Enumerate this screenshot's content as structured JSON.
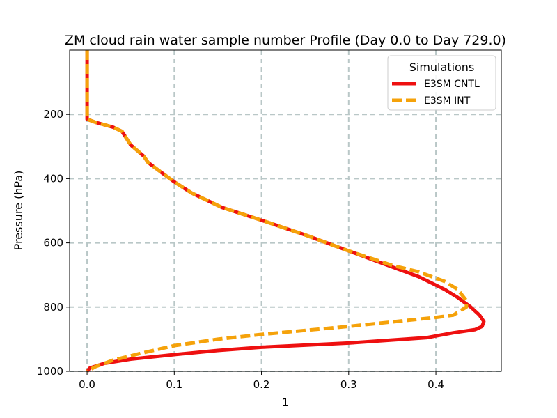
{
  "chart_data": {
    "type": "line",
    "title": "ZM cloud rain water sample number Profile (Day 0.0 to Day 729.0)",
    "xlabel": "1",
    "ylabel": "Pressure (hPa)",
    "xlim": [
      -0.02,
      0.475
    ],
    "ylim": [
      1000,
      0
    ],
    "y_inverted": true,
    "xticks": [
      0.0,
      0.1,
      0.2,
      0.3,
      0.4
    ],
    "xtick_labels": [
      "0.0",
      "0.1",
      "0.2",
      "0.3",
      "0.4"
    ],
    "yticks": [
      200,
      400,
      600,
      800,
      1000
    ],
    "ytick_labels": [
      "200",
      "400",
      "600",
      "800",
      "1000"
    ],
    "grid": true,
    "legend": {
      "title": "Simulations",
      "placement": "top-right"
    },
    "series": [
      {
        "name": "E3SM CNTL",
        "color": "#ee1010",
        "style": "solid",
        "points": [
          [
            0.0,
            0
          ],
          [
            0.0,
            50
          ],
          [
            0.0,
            100
          ],
          [
            0.0,
            150
          ],
          [
            0.0,
            200
          ],
          [
            0.0,
            215
          ],
          [
            0.01,
            225
          ],
          [
            0.03,
            240
          ],
          [
            0.04,
            253
          ],
          [
            0.05,
            295
          ],
          [
            0.065,
            330
          ],
          [
            0.07,
            350
          ],
          [
            0.085,
            380
          ],
          [
            0.1,
            410
          ],
          [
            0.12,
            445
          ],
          [
            0.155,
            490
          ],
          [
            0.195,
            525
          ],
          [
            0.25,
            575
          ],
          [
            0.3,
            625
          ],
          [
            0.35,
            675
          ],
          [
            0.38,
            705
          ],
          [
            0.41,
            745
          ],
          [
            0.425,
            770
          ],
          [
            0.44,
            800
          ],
          [
            0.45,
            825
          ],
          [
            0.455,
            845
          ],
          [
            0.453,
            860
          ],
          [
            0.445,
            870
          ],
          [
            0.42,
            880
          ],
          [
            0.39,
            895
          ],
          [
            0.3,
            912
          ],
          [
            0.2,
            925
          ],
          [
            0.15,
            935
          ],
          [
            0.1,
            948
          ],
          [
            0.05,
            962
          ],
          [
            0.02,
            975
          ],
          [
            0.003,
            990
          ],
          [
            0.0,
            1000
          ]
        ]
      },
      {
        "name": "E3SM INT",
        "color": "#f5a20a",
        "style": "dashed",
        "points": [
          [
            0.0,
            0
          ],
          [
            0.0,
            50
          ],
          [
            0.0,
            100
          ],
          [
            0.0,
            150
          ],
          [
            0.0,
            200
          ],
          [
            0.0,
            215
          ],
          [
            0.01,
            225
          ],
          [
            0.03,
            240
          ],
          [
            0.04,
            253
          ],
          [
            0.05,
            295
          ],
          [
            0.065,
            330
          ],
          [
            0.07,
            350
          ],
          [
            0.085,
            380
          ],
          [
            0.1,
            410
          ],
          [
            0.12,
            445
          ],
          [
            0.155,
            490
          ],
          [
            0.195,
            525
          ],
          [
            0.25,
            575
          ],
          [
            0.3,
            625
          ],
          [
            0.35,
            670
          ],
          [
            0.38,
            690
          ],
          [
            0.41,
            720
          ],
          [
            0.425,
            745
          ],
          [
            0.435,
            780
          ],
          [
            0.435,
            800
          ],
          [
            0.42,
            825
          ],
          [
            0.4,
            832
          ],
          [
            0.3,
            860
          ],
          [
            0.2,
            885
          ],
          [
            0.15,
            900
          ],
          [
            0.1,
            920
          ],
          [
            0.06,
            945
          ],
          [
            0.03,
            965
          ],
          [
            0.01,
            985
          ],
          [
            0.0,
            1000
          ]
        ]
      }
    ]
  }
}
